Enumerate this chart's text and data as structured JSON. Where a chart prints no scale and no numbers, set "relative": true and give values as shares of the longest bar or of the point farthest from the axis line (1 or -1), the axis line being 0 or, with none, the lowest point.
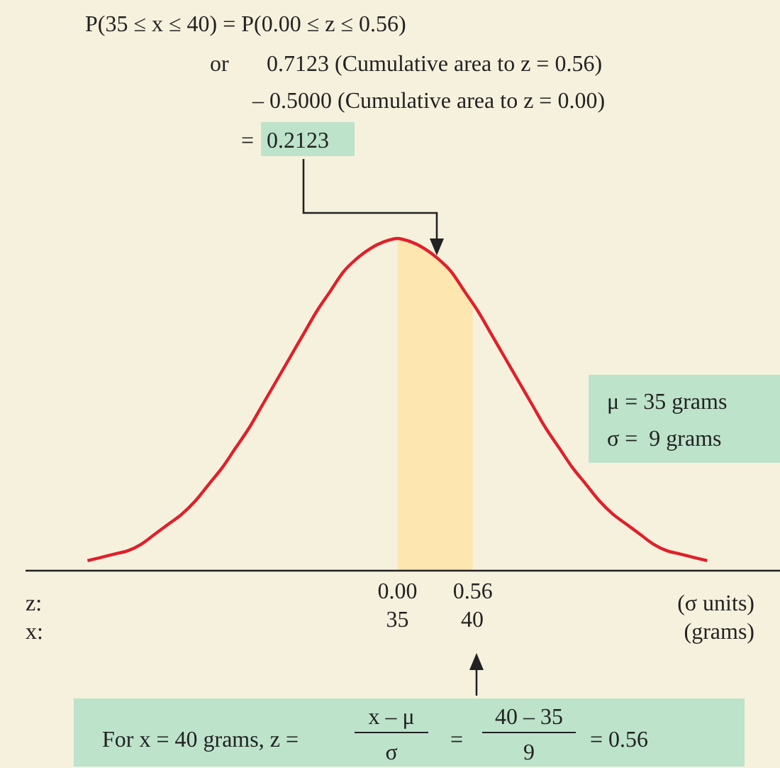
{
  "chart_data": {
    "type": "line",
    "relative": true,
    "x": [
      -2.3,
      -2.2,
      -2.1,
      -2.0,
      -1.9,
      -1.8,
      -1.7,
      -1.6,
      -1.5,
      -1.4,
      -1.3,
      -1.2,
      -1.1,
      -1.0,
      -0.9,
      -0.8,
      -0.7,
      -0.6,
      -0.5,
      -0.4,
      -0.3,
      -0.2,
      -0.1,
      0,
      0.1,
      0.2,
      0.3,
      0.4,
      0.5,
      0.6,
      0.7,
      0.8,
      0.9,
      1.0,
      1.1,
      1.2,
      1.3,
      1.4,
      1.5,
      1.6,
      1.7,
      1.8,
      1.9,
      2.0,
      2.1,
      2.2,
      2.3
    ],
    "series": [
      {
        "color": "#e0202a",
        "values": [
          0.03,
          0.04,
          0.05,
          0.06,
          0.08,
          0.11,
          0.14,
          0.17,
          0.21,
          0.26,
          0.31,
          0.37,
          0.43,
          0.5,
          0.57,
          0.64,
          0.71,
          0.78,
          0.84,
          0.9,
          0.94,
          0.97,
          0.99,
          1,
          0.99,
          0.97,
          0.94,
          0.9,
          0.84,
          0.78,
          0.71,
          0.64,
          0.57,
          0.5,
          0.43,
          0.37,
          0.31,
          0.26,
          0.21,
          0.17,
          0.14,
          0.11,
          0.08,
          0.06,
          0.05,
          0.04,
          0.03
        ]
      }
    ],
    "xlim": [
      -2.76,
      2.84
    ],
    "xticks": [
      {
        "value": 0,
        "label": "0.00"
      },
      {
        "value": 0.56,
        "label": "0.56"
      }
    ],
    "x2lim": [
      10.16,
      60.56
    ],
    "x2ticks": [
      35,
      40
    ],
    "xlabel": "(σ units)",
    "x2label": "(grams)",
    "bands": [
      {
        "axis": "x",
        "from": 0,
        "to": 0.56,
        "color": "#fde6b0"
      }
    ],
    "annotations": [
      "P(35 ≤ x ≤ 40) = P(0.00 ≤ z ≤ 0.56)",
      "or",
      "0.7123 (Cumulative area to z = 0.56)",
      "– 0.5000 (Cumulative area to z = 0.00)",
      "=",
      "0.2123",
      "μ = 35 grams",
      "σ =  9 grams",
      "z:",
      "x:",
      "For x = 40 grams, z =",
      "x – μ",
      "σ",
      "=",
      "40 – 35",
      "9",
      "= 0.56"
    ],
    "marker": "none",
    "line_style": "solid"
  }
}
